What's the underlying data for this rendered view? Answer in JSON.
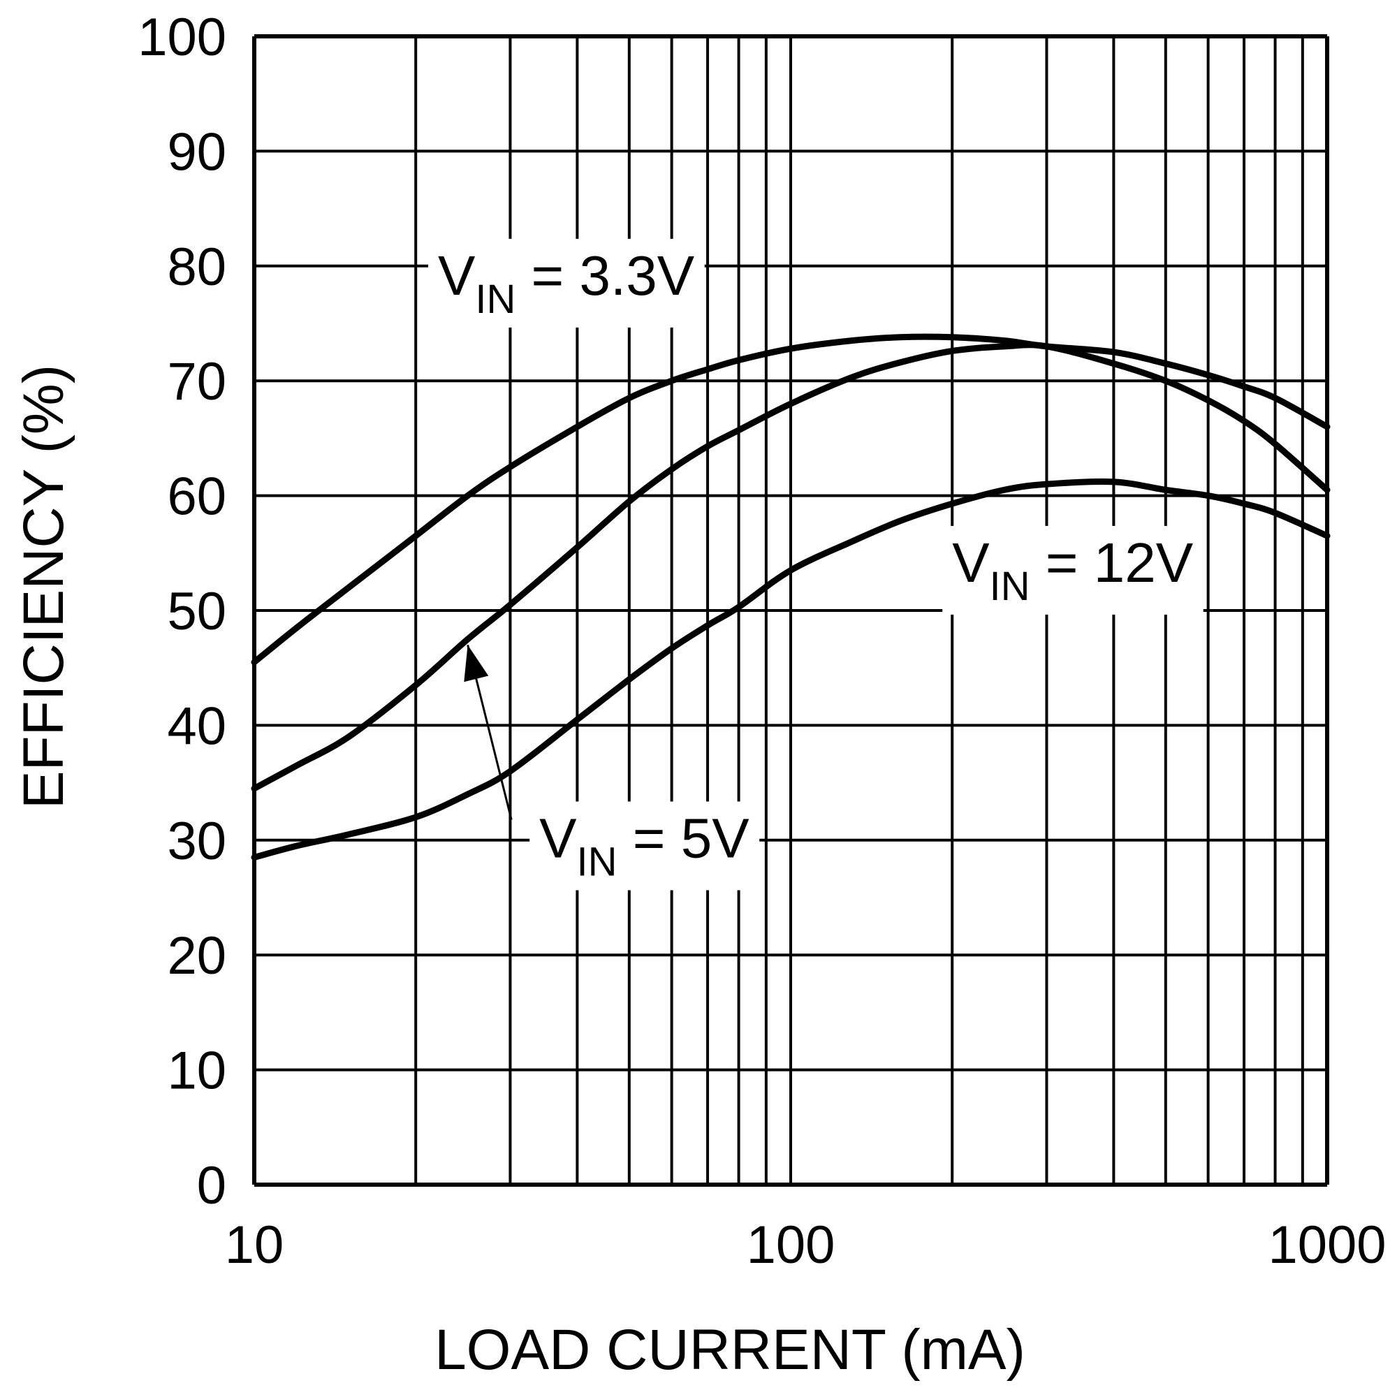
{
  "chart_data": {
    "type": "line",
    "title": "",
    "xlabel": "LOAD CURRENT (mA)",
    "ylabel": "EFFICIENCY (%)",
    "xscale": "log",
    "xlim": [
      10,
      1000
    ],
    "ylim": [
      0,
      100
    ],
    "grid": true,
    "legend": "none",
    "xticks": [
      "10",
      "100",
      "1000"
    ],
    "yticks": [
      "0",
      "10",
      "20",
      "30",
      "40",
      "50",
      "60",
      "70",
      "80",
      "90",
      "100"
    ],
    "series": [
      {
        "name": "VIN = 3.3V",
        "x": [
          10,
          12,
          15,
          20,
          25,
          30,
          40,
          50,
          60,
          70,
          80,
          100,
          130,
          160,
          200,
          250,
          300,
          400,
          500,
          600,
          700,
          800,
          1000
        ],
        "y": [
          45.5,
          48.5,
          52,
          56.5,
          60,
          62.5,
          66,
          68.5,
          70,
          71,
          71.8,
          72.8,
          73.5,
          73.8,
          73.8,
          73.5,
          73,
          72.5,
          71.5,
          70.5,
          69.5,
          68.5,
          66
        ]
      },
      {
        "name": "VIN = 5V",
        "x": [
          10,
          12,
          15,
          20,
          25,
          30,
          40,
          50,
          60,
          70,
          80,
          100,
          130,
          160,
          200,
          250,
          300,
          400,
          500,
          600,
          700,
          800,
          1000
        ],
        "y": [
          34.5,
          36.5,
          39,
          43.5,
          47.5,
          50.5,
          55.5,
          59.5,
          62.3,
          64.3,
          65.7,
          68,
          70.3,
          71.6,
          72.6,
          73,
          73,
          71.5,
          70,
          68.3,
          66.5,
          64.5,
          60.5
        ]
      },
      {
        "name": "VIN = 12V",
        "x": [
          10,
          12,
          15,
          20,
          25,
          30,
          40,
          50,
          60,
          70,
          80,
          100,
          130,
          160,
          200,
          250,
          300,
          400,
          500,
          600,
          700,
          800,
          1000
        ],
        "y": [
          28.5,
          29.5,
          30.5,
          32,
          34,
          36,
          40.5,
          44,
          46.7,
          48.7,
          50.3,
          53.5,
          56,
          57.8,
          59.3,
          60.5,
          61,
          61.2,
          60.5,
          60,
          59.3,
          58.5,
          56.5
        ]
      }
    ],
    "annotations": [
      {
        "text": "V",
        "sub": "IN",
        "rest": " = 3.3V",
        "at": [
          22,
          77.5
        ]
      },
      {
        "text": "V",
        "sub": "IN",
        "rest": " = 5V",
        "at": [
          34,
          28.5
        ]
      },
      {
        "text": "V",
        "sub": "IN",
        "rest": " = 12V",
        "at": [
          200,
          52.5
        ]
      }
    ],
    "arrow": {
      "from": [
        34,
        33
      ],
      "to": [
        25,
        47
      ]
    }
  }
}
